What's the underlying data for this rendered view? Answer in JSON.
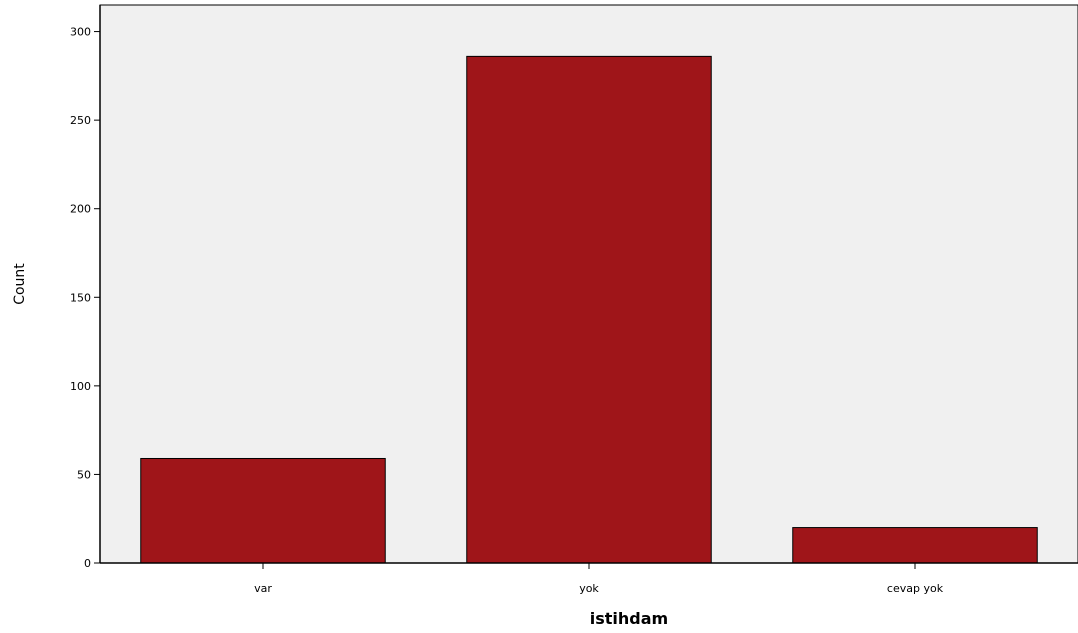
{
  "chart_data": {
    "type": "bar",
    "categories": [
      "var",
      "yok",
      "cevap yok"
    ],
    "values": [
      59,
      286,
      20
    ],
    "xlabel": "istihdam",
    "ylabel": "Count",
    "ylim": [
      0,
      315
    ],
    "yticks": [
      0,
      50,
      100,
      150,
      200,
      250,
      300
    ],
    "grid": false,
    "legend": "none"
  },
  "colors": {
    "bar": "#9f1519",
    "plot_background": "#f0f0f0",
    "axis": "#000000"
  }
}
